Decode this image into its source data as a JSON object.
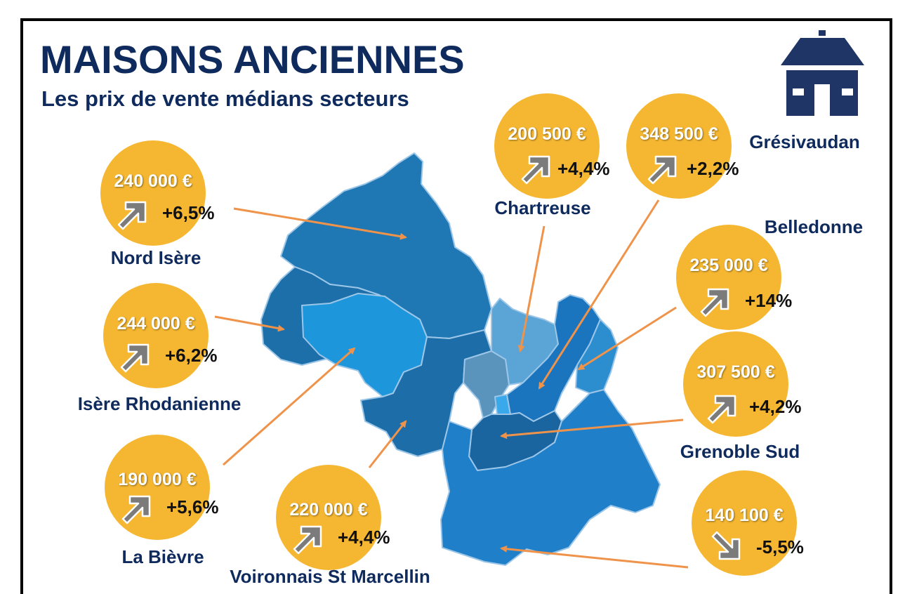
{
  "title": "MAISONS ANCIENNES",
  "subtitle": "Les prix de vente médians secteurs",
  "colors": {
    "title": "#0f2a5c",
    "bubble": "#f5b731",
    "arrow_line": "#f0934a",
    "trend_icon": "#7b7b7b"
  },
  "sectors": [
    {
      "name": "Nord Isère",
      "price": "240 000 €",
      "change": "+6,5%",
      "trend": "up"
    },
    {
      "name": "Isère Rhodanienne",
      "price": "244 000 €",
      "change": "+6,2%",
      "trend": "up"
    },
    {
      "name": "La Bièvre",
      "price": "190 000 €",
      "change": "+5,6%",
      "trend": "up"
    },
    {
      "name": "Voironnais St Marcellin",
      "price": "220 000 €",
      "change": "+4,4%",
      "trend": "up"
    },
    {
      "name": "Chartreuse",
      "price": "200 500 €",
      "change": "+4,4%",
      "trend": "up"
    },
    {
      "name": "Grésivaudan",
      "price": "348 500 €",
      "change": "+2,2%",
      "trend": "up"
    },
    {
      "name": "Belledonne",
      "price": "235 000 €",
      "change": "+14%",
      "trend": "up"
    },
    {
      "name": "Grenoble Sud",
      "price": "307 500 €",
      "change": "+4,2%",
      "trend": "up"
    },
    {
      "name": "",
      "price": "140 100 €",
      "change": "-5,5%",
      "trend": "down"
    }
  ]
}
